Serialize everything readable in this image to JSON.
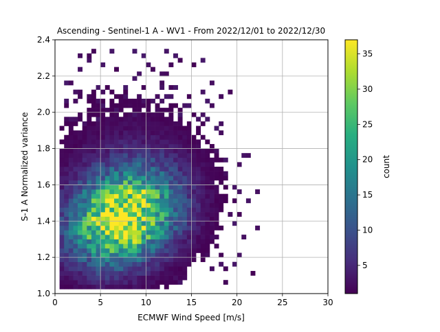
{
  "chart_data": {
    "type": "heatmap",
    "title": "Ascending - Sentinel-1 A - WV1 - From 2022/12/01 to 2022/12/30",
    "xlabel": "ECMWF Wind Speed [m/s]",
    "ylabel": "S-1 A Normalized variance",
    "xlim": [
      0,
      30
    ],
    "ylim": [
      1.0,
      2.4
    ],
    "xticks": [
      "0",
      "5",
      "10",
      "15",
      "20",
      "25",
      "30"
    ],
    "yticks": [
      "1.0",
      "1.2",
      "1.4",
      "1.6",
      "1.8",
      "2.0",
      "2.2",
      "2.4"
    ],
    "grid": true,
    "colorbar": {
      "label": "count",
      "min": 1,
      "max": 37,
      "ticks": [
        "5",
        "10",
        "15",
        "20",
        "25",
        "30",
        "35"
      ],
      "colormap": "viridis"
    },
    "bin_width_x": 0.5,
    "bin_width_y": 0.025,
    "density_model": {
      "peak_count": 37,
      "peak_wind": 7.5,
      "peak_variance": 1.42,
      "support_wind": [
        0.5,
        23.0
      ],
      "support_variance": [
        1.02,
        2.36
      ]
    }
  }
}
